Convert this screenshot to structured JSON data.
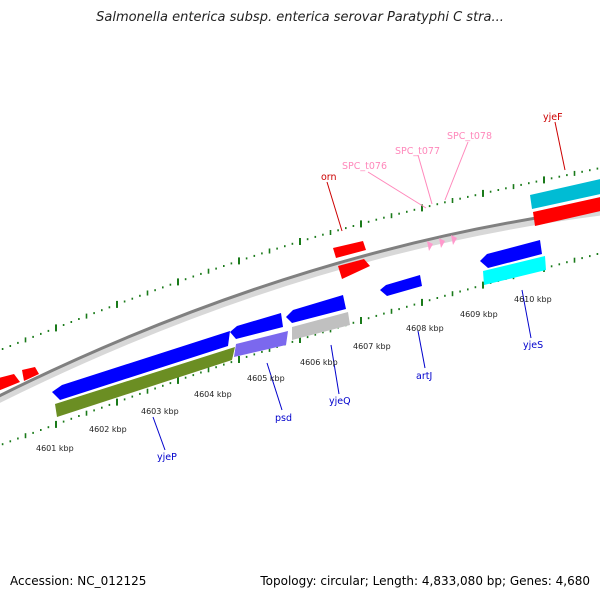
{
  "title": "Salmonella enterica subsp. enterica serovar Paratyphi C stra...",
  "footer": {
    "accession": "Accession: NC_012125",
    "stats": "Topology: circular; Length: 4,833,080 bp; Genes: 4,680"
  },
  "kbp_labels": [
    "4601 kbp",
    "4602 kbp",
    "4603 kbp",
    "4604 kbp",
    "4605 kbp",
    "4606 kbp",
    "4607 kbp",
    "4608 kbp",
    "4609 kbp",
    "4610 kbp"
  ],
  "colors": {
    "axis_line": "#808080",
    "tick": "#1a7a1a",
    "forward_gene": "#ff0000",
    "reverse_gene": "#0000ff",
    "cds_green": "#6b8e23",
    "cds_purple": "#7b68ee",
    "cds_grey": "#c0c0c0",
    "cds_cyan": "#00ffff",
    "cds_teal": "#00bcd4",
    "forward_label": "#cc0000",
    "reverse_label": "#0000cc",
    "rna_label": "#ff88bb",
    "rna_feature": "#ff99cc"
  },
  "gene_labels": {
    "orn": "orn",
    "yjeF": "yjeF",
    "spc_t076": "SPC_t076",
    "spc_t077": "SPC_t077",
    "spc_t078": "SPC_t078",
    "yjeP": "yjeP",
    "psd": "psd",
    "yjeQ": "yjeQ",
    "artJ": "artJ",
    "yjeS": "yjeS"
  }
}
